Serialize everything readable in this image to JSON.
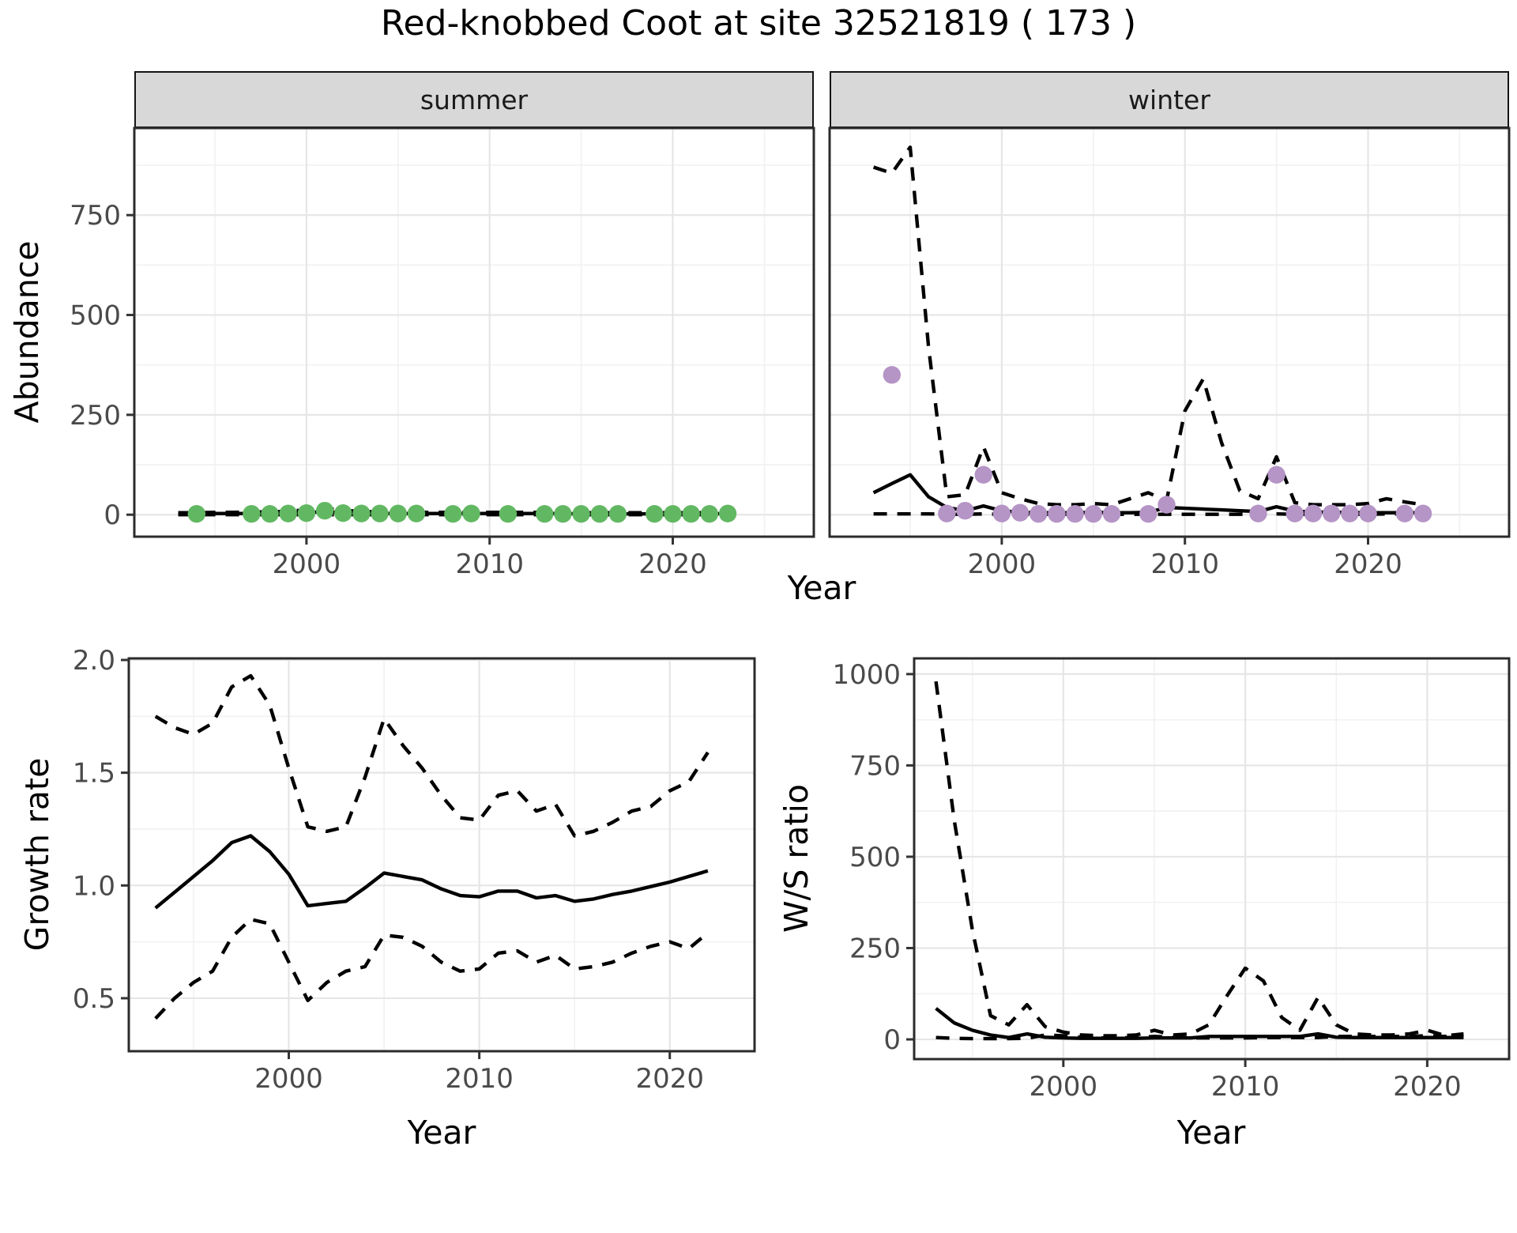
{
  "title": "Red-knobbed Coot at site 32521819 ( 173 )",
  "top_figure": {
    "facets": [
      {
        "label": "summer"
      },
      {
        "label": "winter"
      }
    ],
    "ylabel": "Abundance",
    "xlabel": "Year"
  },
  "bottom_left_figure": {
    "ylabel": "Growth rate",
    "xlabel": "Year"
  },
  "bottom_right_figure": {
    "ylabel": "W/S ratio",
    "xlabel": "Year"
  },
  "colors": {
    "summer_point": "#62b862",
    "winter_point": "#b594c6",
    "line": "#000000",
    "strip_bg": "#d8d8d8",
    "grid_major": "#e6e6e6",
    "grid_minor": "#f1f1f1",
    "panel_border": "#2b2b2b",
    "tick_text": "#4a4a4a"
  },
  "chart_data": [
    {
      "id": "abundance-summer",
      "type": "line",
      "facet": "summer",
      "x": {
        "label": "Year",
        "range": [
          1990.6,
          2027.7
        ],
        "ticks": [
          2000,
          2010,
          2020
        ],
        "tick_labels": [
          "2000",
          "2010",
          "2020"
        ],
        "minor_ticks": [
          1995,
          2005,
          2015,
          2025
        ]
      },
      "y": {
        "label": "Abundance",
        "range": [
          -55,
          968
        ],
        "ticks": [
          0,
          250,
          500,
          750
        ],
        "tick_labels": [
          "0",
          "250",
          "500",
          "750"
        ],
        "minor_ticks": [
          125,
          375,
          625,
          875
        ]
      },
      "years_start": 1993,
      "series": [
        {
          "name": "lower_ci",
          "linestyle": "dashed",
          "values": [
            0,
            0,
            0,
            0,
            0,
            0,
            0,
            0,
            0,
            0,
            0,
            0,
            0,
            0,
            0,
            0,
            0,
            0,
            0,
            0,
            0,
            0,
            0,
            0,
            0,
            0,
            0,
            0,
            0,
            0,
            0
          ]
        },
        {
          "name": "upper_ci",
          "linestyle": "dashed",
          "values": [
            5,
            5,
            6,
            6,
            7,
            7,
            9,
            12,
            16,
            11,
            8,
            7,
            6,
            6,
            6,
            6,
            6,
            6,
            6,
            6,
            6,
            6,
            5,
            5,
            5,
            5,
            5,
            5,
            5,
            5,
            6
          ]
        },
        {
          "name": "median",
          "linestyle": "solid",
          "values": [
            2,
            2,
            3,
            3,
            3,
            3,
            4,
            5,
            8,
            5,
            4,
            3,
            3,
            3,
            3,
            3,
            3,
            3,
            3,
            3,
            3,
            3,
            2,
            2,
            2,
            2,
            2,
            2,
            2,
            2,
            3
          ]
        }
      ],
      "points": {
        "name": "observed-counts",
        "color": "#62b862",
        "data": [
          [
            1994,
            2
          ],
          [
            1997,
            2
          ],
          [
            1998,
            2
          ],
          [
            1999,
            3
          ],
          [
            2000,
            4
          ],
          [
            2001,
            10
          ],
          [
            2002,
            4
          ],
          [
            2003,
            3
          ],
          [
            2004,
            3
          ],
          [
            2005,
            3
          ],
          [
            2006,
            3
          ],
          [
            2008,
            2
          ],
          [
            2009,
            3
          ],
          [
            2011,
            2
          ],
          [
            2013,
            2
          ],
          [
            2014,
            2
          ],
          [
            2015,
            2
          ],
          [
            2016,
            2
          ],
          [
            2017,
            2
          ],
          [
            2019,
            2
          ],
          [
            2020,
            2
          ],
          [
            2021,
            2
          ],
          [
            2022,
            2
          ],
          [
            2023,
            3
          ]
        ]
      }
    },
    {
      "id": "abundance-winter",
      "type": "line",
      "facet": "winter",
      "x": {
        "label": "Year",
        "range": [
          1990.6,
          2027.7
        ],
        "ticks": [
          2000,
          2010,
          2020
        ],
        "tick_labels": [
          "2000",
          "2010",
          "2020"
        ],
        "minor_ticks": [
          1995,
          2005,
          2015,
          2025
        ]
      },
      "y": {
        "label": "Abundance",
        "range": [
          -55,
          968
        ],
        "ticks": [
          0,
          250,
          500,
          750
        ],
        "tick_labels": [
          "0",
          "250",
          "500",
          "750"
        ],
        "minor_ticks": [
          125,
          375,
          625,
          875
        ]
      },
      "years_start": 1993,
      "series": [
        {
          "name": "lower_ci",
          "linestyle": "dashed",
          "values": [
            2,
            2,
            2,
            2,
            1,
            1,
            2,
            1,
            1,
            1,
            1,
            1,
            1,
            1,
            1,
            1,
            1,
            1,
            1,
            1,
            1,
            1,
            2,
            1,
            1,
            1,
            1,
            1,
            2,
            2,
            2
          ]
        },
        {
          "name": "upper_ci",
          "linestyle": "dashed",
          "values": [
            870,
            855,
            920,
            420,
            45,
            50,
            170,
            55,
            40,
            28,
            25,
            25,
            28,
            25,
            40,
            55,
            35,
            260,
            340,
            180,
            60,
            40,
            145,
            30,
            25,
            25,
            25,
            28,
            40,
            32,
            25
          ]
        },
        {
          "name": "median",
          "linestyle": "solid",
          "values": [
            55,
            78,
            100,
            45,
            18,
            10,
            22,
            10,
            6,
            5,
            5,
            5,
            6,
            5,
            5,
            6,
            18,
            16,
            14,
            12,
            10,
            8,
            20,
            9,
            7,
            6,
            6,
            5,
            5,
            5,
            5
          ]
        }
      ],
      "points": {
        "name": "observed-counts",
        "color": "#b594c6",
        "data": [
          [
            1994,
            350
          ],
          [
            1997,
            3
          ],
          [
            1998,
            10
          ],
          [
            1999,
            100
          ],
          [
            2000,
            3
          ],
          [
            2001,
            5
          ],
          [
            2002,
            2
          ],
          [
            2003,
            2
          ],
          [
            2004,
            2
          ],
          [
            2005,
            2
          ],
          [
            2006,
            2
          ],
          [
            2008,
            2
          ],
          [
            2009,
            25
          ],
          [
            2014,
            3
          ],
          [
            2015,
            100
          ],
          [
            2016,
            3
          ],
          [
            2017,
            3
          ],
          [
            2018,
            3
          ],
          [
            2019,
            3
          ],
          [
            2020,
            3
          ],
          [
            2022,
            3
          ],
          [
            2023,
            3
          ]
        ]
      }
    },
    {
      "id": "growth-rate",
      "type": "line",
      "x": {
        "label": "Year",
        "range": [
          1991.6,
          2024.45
        ],
        "ticks": [
          2000,
          2010,
          2020
        ],
        "tick_labels": [
          "2000",
          "2010",
          "2020"
        ],
        "minor_ticks": [
          1995,
          2005,
          2015
        ]
      },
      "y": {
        "label": "Growth rate",
        "range": [
          0.265,
          2.007
        ],
        "ticks": [
          0.5,
          1.0,
          1.5,
          2.0
        ],
        "tick_labels": [
          "0.5",
          "1.0",
          "1.5",
          "2.0"
        ],
        "minor_ticks": [
          0.75,
          1.25,
          1.75
        ]
      },
      "years_start": 1993,
      "series": [
        {
          "name": "lower_ci",
          "linestyle": "dashed",
          "values": [
            0.41,
            0.5,
            0.57,
            0.62,
            0.77,
            0.85,
            0.83,
            0.66,
            0.49,
            0.57,
            0.62,
            0.64,
            0.78,
            0.77,
            0.73,
            0.66,
            0.62,
            0.63,
            0.7,
            0.71,
            0.66,
            0.69,
            0.63,
            0.64,
            0.66,
            0.7,
            0.73,
            0.75,
            0.72,
            0.79
          ]
        },
        {
          "name": "upper_ci",
          "linestyle": "dashed",
          "values": [
            1.75,
            1.7,
            1.67,
            1.72,
            1.88,
            1.93,
            1.8,
            1.52,
            1.26,
            1.24,
            1.26,
            1.48,
            1.74,
            1.62,
            1.52,
            1.4,
            1.3,
            1.29,
            1.4,
            1.42,
            1.33,
            1.36,
            1.22,
            1.24,
            1.28,
            1.33,
            1.35,
            1.42,
            1.46,
            1.59
          ]
        },
        {
          "name": "median",
          "linestyle": "solid",
          "values": [
            0.9,
            0.97,
            1.04,
            1.11,
            1.19,
            1.22,
            1.15,
            1.05,
            0.91,
            0.92,
            0.93,
            0.99,
            1.055,
            1.04,
            1.025,
            0.985,
            0.955,
            0.95,
            0.975,
            0.975,
            0.945,
            0.955,
            0.93,
            0.94,
            0.96,
            0.975,
            0.995,
            1.015,
            1.04,
            1.065
          ]
        }
      ],
      "points": null
    },
    {
      "id": "ws-ratio",
      "type": "line",
      "x": {
        "label": "Year",
        "range": [
          1991.8,
          2024.5
        ],
        "ticks": [
          2000,
          2010,
          2020
        ],
        "tick_labels": [
          "2000",
          "2010",
          "2020"
        ],
        "minor_ticks": [
          1995,
          2005,
          2015
        ]
      },
      "y": {
        "label": "W/S ratio",
        "range": [
          -54,
          1043
        ],
        "ticks": [
          0,
          250,
          500,
          750,
          1000
        ],
        "tick_labels": [
          "0",
          "250",
          "500",
          "750",
          "1000"
        ],
        "minor_ticks": [
          125,
          375,
          625,
          875
        ]
      },
      "years_start": 1993,
      "series": [
        {
          "name": "lower_ci",
          "linestyle": "dashed",
          "values": [
            5,
            3,
            2,
            2,
            2,
            3,
            12,
            10,
            5,
            4,
            4,
            5,
            8,
            6,
            4,
            4,
            4,
            4,
            5,
            5,
            5,
            5,
            8,
            8,
            8,
            8,
            8,
            10,
            8,
            10
          ]
        },
        {
          "name": "upper_ci",
          "linestyle": "dashed",
          "values": [
            980,
            600,
            300,
            65,
            40,
            95,
            35,
            20,
            12,
            10,
            10,
            12,
            25,
            12,
            15,
            40,
            120,
            195,
            160,
            60,
            25,
            115,
            40,
            15,
            12,
            12,
            15,
            25,
            10,
            15
          ]
        },
        {
          "name": "median",
          "linestyle": "solid",
          "values": [
            85,
            45,
            25,
            12,
            5,
            15,
            6,
            4,
            3,
            3,
            3,
            3,
            4,
            4,
            4,
            8,
            8,
            8,
            8,
            8,
            8,
            15,
            6,
            5,
            5,
            5,
            5,
            5,
            5,
            5
          ]
        }
      ],
      "points": null
    }
  ]
}
